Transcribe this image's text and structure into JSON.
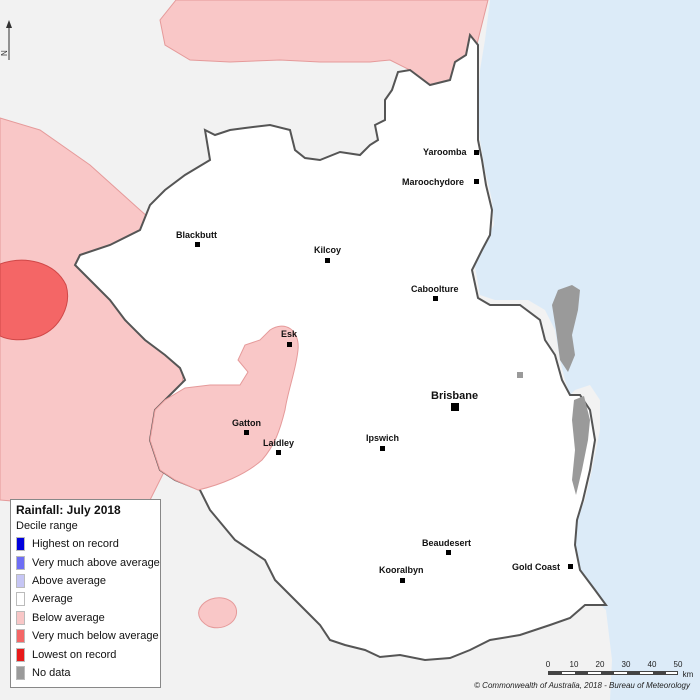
{
  "legend": {
    "title": "Rainfall: July 2018",
    "subtitle": "Decile range",
    "items": [
      {
        "label": "Highest on record",
        "color": "#0000dd"
      },
      {
        "label": "Very much above average",
        "color": "#6e6ef5"
      },
      {
        "label": "Above average",
        "color": "#c6c6f5"
      },
      {
        "label": "Average",
        "color": "#ffffff"
      },
      {
        "label": "Below average",
        "color": "#f9c7c7"
      },
      {
        "label": "Very much below average",
        "color": "#f46666"
      },
      {
        "label": "Lowest on record",
        "color": "#e81a1a"
      },
      {
        "label": "No data",
        "color": "#9a9a9a"
      }
    ]
  },
  "places": {
    "yaroomba": "Yaroomba",
    "maroochydore": "Maroochydore",
    "blackbutt": "Blackbutt",
    "kilcoy": "Kilcoy",
    "caboolture": "Caboolture",
    "esk": "Esk",
    "brisbane": "Brisbane",
    "gatton": "Gatton",
    "laidley": "Laidley",
    "ipswich": "Ipswich",
    "beaudesert": "Beaudesert",
    "gold_coast": "Gold Coast",
    "kooralbyn": "Kooralbyn"
  },
  "scale": {
    "ticks": [
      "0",
      "10",
      "20",
      "30",
      "40",
      "50"
    ],
    "unit": "km"
  },
  "north_label": "N",
  "copyright": "© Commonwealth of Australia, 2018 - Bureau of Meteorology",
  "colors": {
    "ocean": "#dcebf8",
    "land_outside": "#f2f2f2",
    "region_average": "#ffffff",
    "below_average": "#f9c7c7",
    "very_much_below": "#f46666",
    "no_data": "#9a9a9a"
  }
}
